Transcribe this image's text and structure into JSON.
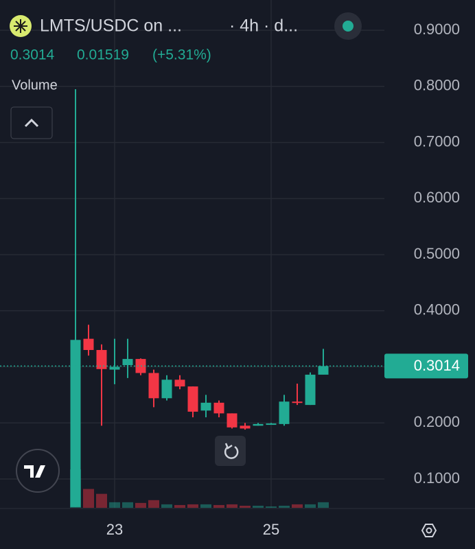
{
  "chart_data": {
    "type": "candlestick",
    "title": "LMTS/USDC on ...",
    "subtitle": "· 4h · d...",
    "change": 0.01519,
    "change_pct": "(+5.31%)",
    "volume_label": "Volume",
    "categories": [
      null,
      null,
      null,
      "23",
      null,
      null,
      null,
      null,
      null,
      null,
      null,
      null,
      null,
      null,
      null,
      "25",
      null,
      null,
      null,
      null
    ],
    "open": [
      0.05,
      0.35,
      0.33,
      0.295,
      0.303,
      0.314,
      0.289,
      0.244,
      0.277,
      0.265,
      0.222,
      0.236,
      0.217,
      0.195,
      0.195,
      0.198,
      0.198,
      0.238,
      0.232,
      0.286
    ],
    "high": [
      0.795,
      0.375,
      0.34,
      0.35,
      0.35,
      0.315,
      0.295,
      0.285,
      0.285,
      0.265,
      0.25,
      0.24,
      0.217,
      0.2,
      0.2,
      0.2,
      0.25,
      0.27,
      0.29,
      0.332
    ],
    "low": [
      0.05,
      0.32,
      0.195,
      0.269,
      0.28,
      0.285,
      0.228,
      0.24,
      0.26,
      0.21,
      0.21,
      0.21,
      0.19,
      0.188,
      0.195,
      0.197,
      0.195,
      0.232,
      0.232,
      0.286
    ],
    "close": [
      0.348,
      0.33,
      0.296,
      0.3,
      0.314,
      0.289,
      0.244,
      0.277,
      0.265,
      0.22,
      0.236,
      0.217,
      0.192,
      0.19,
      0.198,
      0.199,
      0.238,
      0.236,
      0.286,
      0.3014
    ],
    "volume": [
      55,
      27,
      20,
      8,
      8,
      7,
      11,
      5,
      4,
      5,
      5,
      4,
      5,
      3,
      3,
      2,
      3,
      5,
      5,
      8
    ],
    "ylim": [
      0.0486,
      0.954
    ],
    "yticks": [
      {
        "value": 0.1,
        "label": "0.1000"
      },
      {
        "value": 0.2,
        "label": "0.2000"
      },
      {
        "value": 0.3,
        "label": "0.3000"
      },
      {
        "value": 0.4,
        "label": "0.4000"
      },
      {
        "value": 0.5,
        "label": "0.5000"
      },
      {
        "value": 0.6,
        "label": "0.6000"
      },
      {
        "value": 0.7,
        "label": "0.7000"
      },
      {
        "value": 0.8,
        "label": "0.8000"
      },
      {
        "value": 0.9,
        "label": "0.9000"
      }
    ],
    "up_color": "#22ab94",
    "down_color": "#f23645",
    "grid": true
  }
}
